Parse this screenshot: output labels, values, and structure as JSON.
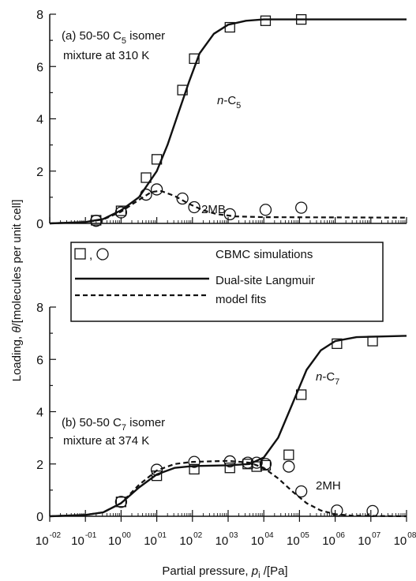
{
  "chart_data": [
    {
      "type": "scatter",
      "panel_label": "(a) 50-50 C",
      "panel_label_sub": "5",
      "panel_label_tail": " isomer",
      "panel_label_line2": "mixture at 310 K",
      "ylim": [
        0,
        8
      ],
      "y_ticks": [
        "0",
        "2",
        "4",
        "6",
        "8"
      ],
      "x_scale": "log",
      "xlim": [
        -2,
        8
      ],
      "series": [
        {
          "name": "n-C5",
          "label_prefix": "n",
          "label_main": "-C",
          "label_sub": "5",
          "marker": "square",
          "line_style": "solid",
          "points": [
            [
              -0.7,
              0.12
            ],
            [
              0.0,
              0.48
            ],
            [
              0.7,
              1.75
            ],
            [
              1.0,
              2.45
            ],
            [
              1.72,
              5.1
            ],
            [
              2.05,
              6.3
            ],
            [
              3.05,
              7.5
            ],
            [
              4.05,
              7.75
            ],
            [
              5.05,
              7.8
            ]
          ],
          "fit": [
            [
              -2.0,
              0.0
            ],
            [
              -1.0,
              0.05
            ],
            [
              -0.5,
              0.17
            ],
            [
              0.0,
              0.5
            ],
            [
              0.5,
              1.0
            ],
            [
              1.0,
              2.0
            ],
            [
              1.3,
              3.0
            ],
            [
              1.6,
              4.2
            ],
            [
              1.9,
              5.4
            ],
            [
              2.2,
              6.5
            ],
            [
              2.6,
              7.25
            ],
            [
              3.0,
              7.6
            ],
            [
              3.5,
              7.75
            ],
            [
              4.0,
              7.8
            ],
            [
              8.0,
              7.8
            ]
          ]
        },
        {
          "name": "2MB",
          "marker": "circle",
          "line_style": "dashed",
          "points": [
            [
              -0.7,
              0.1
            ],
            [
              0.0,
              0.42
            ],
            [
              0.7,
              1.1
            ],
            [
              1.0,
              1.3
            ],
            [
              1.72,
              0.95
            ],
            [
              2.05,
              0.62
            ],
            [
              3.05,
              0.35
            ],
            [
              4.05,
              0.52
            ],
            [
              5.05,
              0.6
            ]
          ],
          "fit": [
            [
              -2.0,
              0.0
            ],
            [
              -1.0,
              0.05
            ],
            [
              -0.5,
              0.15
            ],
            [
              0.0,
              0.45
            ],
            [
              0.5,
              0.9
            ],
            [
              0.85,
              1.2
            ],
            [
              1.1,
              1.25
            ],
            [
              1.5,
              1.05
            ],
            [
              1.9,
              0.75
            ],
            [
              2.3,
              0.5
            ],
            [
              2.7,
              0.35
            ],
            [
              3.2,
              0.27
            ],
            [
              4.0,
              0.24
            ],
            [
              8.0,
              0.22
            ]
          ]
        }
      ]
    },
    {
      "type": "scatter",
      "panel_label": "(b) 50-50 C",
      "panel_label_sub": "7",
      "panel_label_tail": " isomer",
      "panel_label_line2": "mixture at 374 K",
      "ylim": [
        0,
        8
      ],
      "y_ticks": [
        "0",
        "2",
        "4",
        "6",
        "8"
      ],
      "x_scale": "log",
      "xlim": [
        -2,
        8
      ],
      "x_ticks": [
        {
          "base": "10",
          "exp": "-02"
        },
        {
          "base": "10",
          "exp": "-01"
        },
        {
          "base": "10",
          "exp": "00"
        },
        {
          "base": "10",
          "exp": "01"
        },
        {
          "base": "10",
          "exp": "02"
        },
        {
          "base": "10",
          "exp": "03"
        },
        {
          "base": "10",
          "exp": "04"
        },
        {
          "base": "10",
          "exp": "05"
        },
        {
          "base": "10",
          "exp": "06"
        },
        {
          "base": "10",
          "exp": "07"
        },
        {
          "base": "10",
          "exp": "08"
        }
      ],
      "series": [
        {
          "name": "n-C7",
          "label_prefix": "n",
          "label_main": "-C",
          "label_sub": "7",
          "marker": "square",
          "line_style": "solid",
          "points": [
            [
              0.0,
              0.55
            ],
            [
              1.0,
              1.55
            ],
            [
              2.05,
              1.8
            ],
            [
              3.05,
              1.85
            ],
            [
              3.55,
              2.0
            ],
            [
              3.8,
              1.9
            ],
            [
              4.05,
              1.95
            ],
            [
              4.7,
              2.35
            ],
            [
              5.05,
              4.65
            ],
            [
              6.05,
              6.6
            ],
            [
              7.05,
              6.7
            ]
          ],
          "fit": [
            [
              -2.0,
              0.0
            ],
            [
              -1.0,
              0.05
            ],
            [
              -0.5,
              0.15
            ],
            [
              0.0,
              0.5
            ],
            [
              0.5,
              1.1
            ],
            [
              1.0,
              1.6
            ],
            [
              1.5,
              1.85
            ],
            [
              2.0,
              1.92
            ],
            [
              3.0,
              1.95
            ],
            [
              3.6,
              2.0
            ],
            [
              4.0,
              2.25
            ],
            [
              4.4,
              3.0
            ],
            [
              4.8,
              4.3
            ],
            [
              5.2,
              5.6
            ],
            [
              5.6,
              6.35
            ],
            [
              6.0,
              6.7
            ],
            [
              6.6,
              6.85
            ],
            [
              8.0,
              6.9
            ]
          ]
        },
        {
          "name": "2MH",
          "marker": "circle",
          "line_style": "dashed",
          "points": [
            [
              0.0,
              0.55
            ],
            [
              1.0,
              1.78
            ],
            [
              2.05,
              2.08
            ],
            [
              3.05,
              2.1
            ],
            [
              3.55,
              2.05
            ],
            [
              3.8,
              2.05
            ],
            [
              4.05,
              2.0
            ],
            [
              4.7,
              1.9
            ],
            [
              5.05,
              0.95
            ],
            [
              6.05,
              0.22
            ],
            [
              7.05,
              0.2
            ]
          ],
          "fit": [
            [
              -2.0,
              0.0
            ],
            [
              -1.0,
              0.05
            ],
            [
              -0.5,
              0.15
            ],
            [
              0.0,
              0.5
            ],
            [
              0.5,
              1.2
            ],
            [
              1.0,
              1.75
            ],
            [
              1.5,
              2.0
            ],
            [
              2.0,
              2.08
            ],
            [
              3.0,
              2.12
            ],
            [
              3.6,
              2.05
            ],
            [
              4.0,
              1.85
            ],
            [
              4.4,
              1.45
            ],
            [
              4.8,
              0.95
            ],
            [
              5.2,
              0.5
            ],
            [
              5.6,
              0.22
            ],
            [
              6.0,
              0.08
            ],
            [
              6.5,
              0.02
            ],
            [
              8.0,
              0.0
            ]
          ]
        }
      ]
    }
  ],
  "legend": {
    "markers_label": "CBMC simulations",
    "marker_separator": ",",
    "solid_label": "Dual-site Langmuir",
    "dashed_label": "model fits"
  },
  "axes": {
    "ylabel_prefix": "Loading, ",
    "ylabel_theta": "θ",
    "ylabel_rest": "/[molecules per unit cell]",
    "xlabel_prefix": "Partial pressure, ",
    "xlabel_p": "p",
    "xlabel_sub": "i",
    "xlabel_rest": " /[Pa]"
  }
}
